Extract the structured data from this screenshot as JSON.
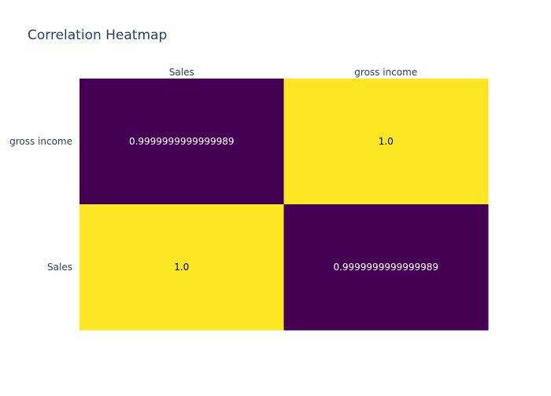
{
  "chart_data": {
    "type": "heatmap",
    "title": "Correlation Heatmap",
    "x_categories": [
      "Sales",
      "gross income"
    ],
    "y_categories": [
      "gross income",
      "Sales"
    ],
    "z": [
      [
        0.9999999999999989,
        1.0
      ],
      [
        1.0,
        0.9999999999999989
      ]
    ],
    "cell_labels": [
      [
        "0.9999999999999989",
        "1.0"
      ],
      [
        "1.0",
        "0.9999999999999989"
      ]
    ],
    "colorscale": {
      "name": "viridis",
      "low_color": "#440154",
      "high_color": "#fde725",
      "low_text_color": "#ffffff",
      "high_text_color": "#000000"
    },
    "x_axis_side": "top",
    "grid": false,
    "legend": "none"
  }
}
